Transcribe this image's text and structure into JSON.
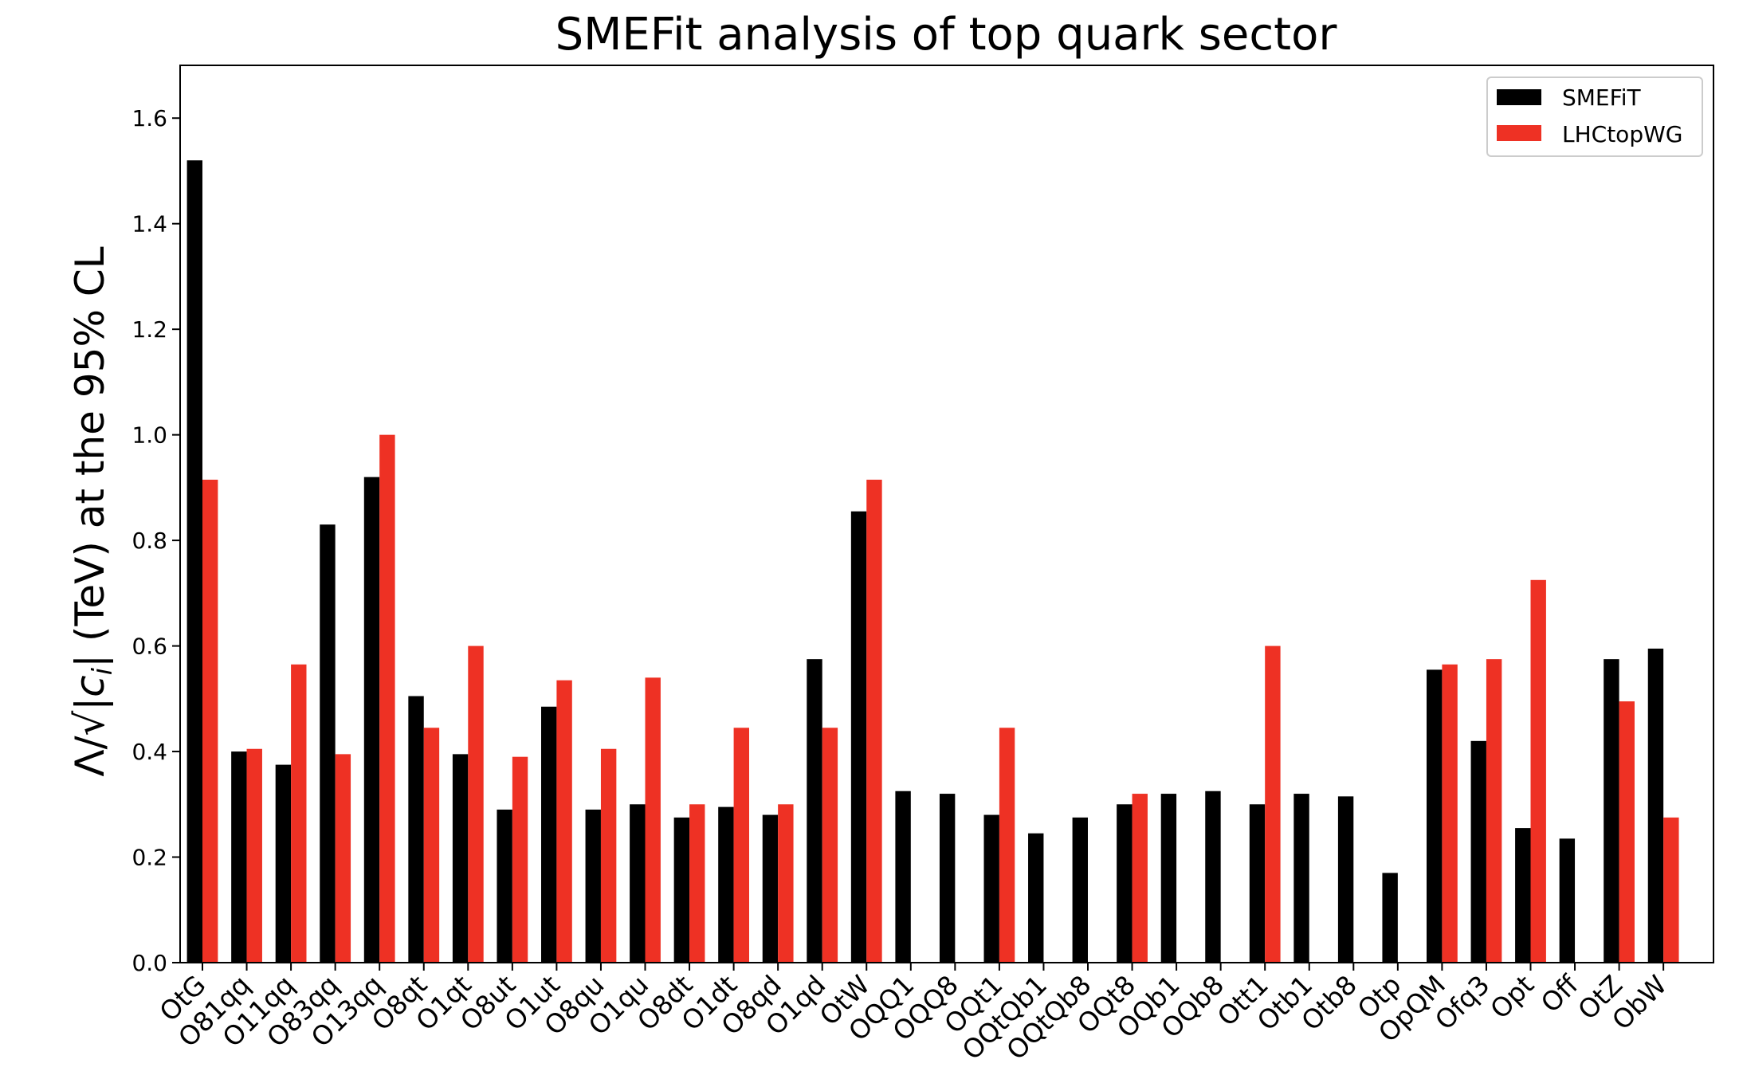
{
  "chart_data": {
    "type": "bar",
    "title": "SMEFit analysis of top quark sector",
    "xlabel": "",
    "ylabel": "Λ/√|c_i| (TeV) at the 95% CL",
    "ylabel_prefix": "Λ/√",
    "ylabel_ci": "|c",
    "ylabel_sub": "i",
    "ylabel_close": "|",
    "ylabel_suffix": " (TeV) at the 95% CL",
    "ylim": [
      0.0,
      1.7
    ],
    "yticks": [
      "0.0",
      "0.2",
      "0.4",
      "0.6",
      "0.8",
      "1.0",
      "1.2",
      "1.4",
      "1.6"
    ],
    "ytick_values": [
      0.0,
      0.2,
      0.4,
      0.6,
      0.8,
      1.0,
      1.2,
      1.4,
      1.6
    ],
    "legend_position": "top-right",
    "categories": [
      "OtG",
      "O81qq",
      "O11qq",
      "O83qq",
      "O13qq",
      "O8qt",
      "O1qt",
      "O8ut",
      "O1ut",
      "O8qu",
      "O1qu",
      "O8dt",
      "O1dt",
      "O8qd",
      "O1qd",
      "OtW",
      "OQQ1",
      "OQQ8",
      "OQt1",
      "OQtQb1",
      "OQtQb8",
      "OQt8",
      "OQb1",
      "OQb8",
      "Ott1",
      "Otb1",
      "Otb8",
      "Otp",
      "OpQM",
      "Ofq3",
      "Opt",
      "Off",
      "OtZ",
      "ObW"
    ],
    "series": [
      {
        "name": "SMEFiT",
        "color": "#000000",
        "values": [
          1.52,
          0.4,
          0.375,
          0.83,
          0.92,
          0.505,
          0.395,
          0.29,
          0.485,
          0.29,
          0.3,
          0.275,
          0.295,
          0.28,
          0.575,
          0.855,
          0.325,
          0.32,
          0.28,
          0.245,
          0.275,
          0.3,
          0.32,
          0.325,
          0.3,
          0.32,
          0.315,
          0.17,
          0.555,
          0.42,
          0.255,
          0.235,
          0.575,
          0.595
        ]
      },
      {
        "name": "LHCtopWG",
        "color": "#ee3124",
        "values": [
          0.915,
          0.405,
          0.565,
          0.395,
          1.0,
          0.445,
          0.6,
          0.39,
          0.535,
          0.405,
          0.54,
          0.3,
          0.445,
          0.3,
          0.445,
          0.915,
          null,
          null,
          0.445,
          null,
          null,
          0.32,
          null,
          null,
          0.6,
          null,
          null,
          null,
          0.565,
          0.575,
          0.725,
          null,
          0.495,
          0.275
        ]
      }
    ]
  }
}
